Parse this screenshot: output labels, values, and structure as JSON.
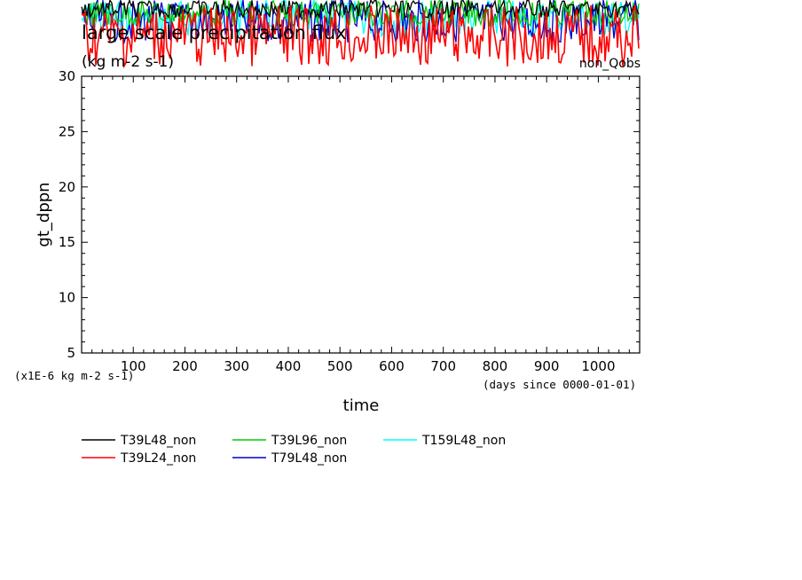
{
  "header": {
    "title": "large scale precipitation flux",
    "units": "(kg m-2 s-1)",
    "run_label": "non_Qobs"
  },
  "axes": {
    "y_label": "gt_dppn",
    "x_label": "time",
    "y_scale_note": "(x1E-6 kg m-2 s-1)",
    "x_unit_note": "(days since 0000-01-01)"
  },
  "chart_data": {
    "type": "line",
    "title": "large scale precipitation flux",
    "xlabel": "time",
    "ylabel": "gt_dppn",
    "xlim": [
      0,
      1080
    ],
    "ylim": [
      5,
      30
    ],
    "x_ticks": [
      "100",
      "200",
      "300",
      "400",
      "500",
      "600",
      "700",
      "800",
      "900",
      "1000"
    ],
    "y_ticks": [
      "5",
      "10",
      "15",
      "20",
      "25",
      "30"
    ],
    "grid": false,
    "legend_position": "bottom-left",
    "series_note": "All series oscillate above the plotted y-range (values > 30) and are clipped above the top axis.",
    "series": [
      {
        "name": "T39L48_non",
        "color": "#000000",
        "values": []
      },
      {
        "name": "T39L24_non",
        "color": "#ff0000",
        "values": []
      },
      {
        "name": "T39L96_non",
        "color": "#00cc00",
        "values": []
      },
      {
        "name": "T79L48_non",
        "color": "#0000cc",
        "values": []
      },
      {
        "name": "T159L48_non",
        "color": "#00ffff",
        "values": []
      }
    ]
  },
  "legend": [
    {
      "label": "T39L48_non",
      "color": "#000000"
    },
    {
      "label": "T39L24_non",
      "color": "#ff0000"
    },
    {
      "label": "T39L96_non",
      "color": "#00cc00"
    },
    {
      "label": "T79L48_non",
      "color": "#0000cc"
    },
    {
      "label": "T159L48_non",
      "color": "#00ffff"
    }
  ]
}
